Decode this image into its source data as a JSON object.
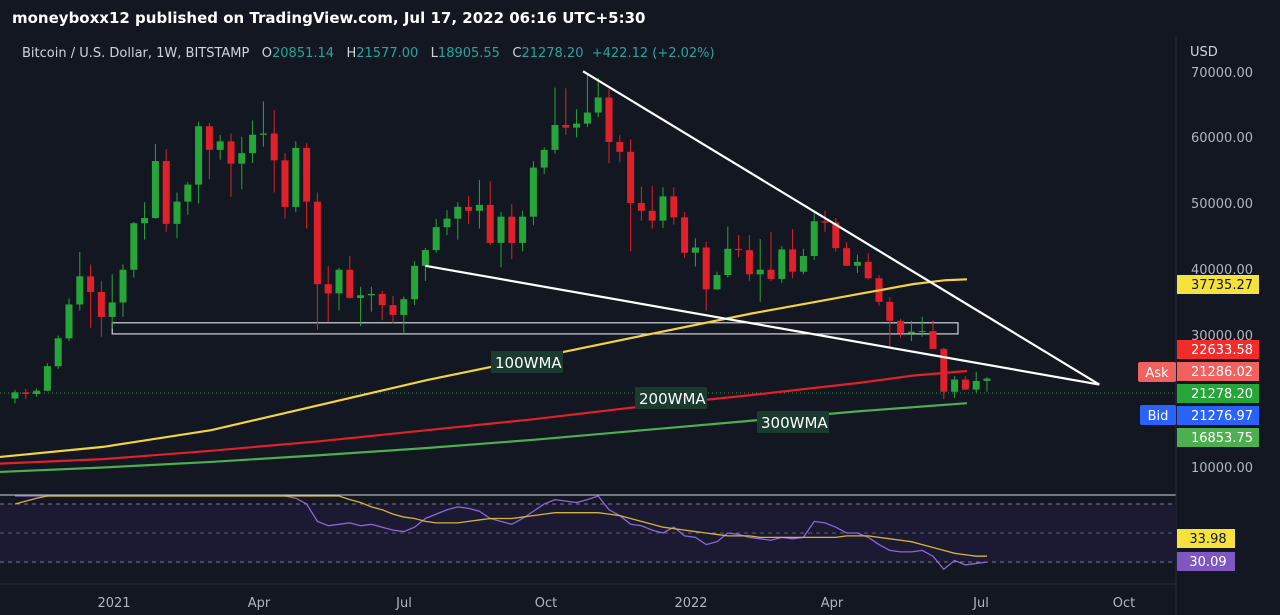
{
  "header": {
    "publisher": "moneyboxx12 published on TradingView.com, Jul 17, 2022 06:16 UTC+5:30"
  },
  "legend": {
    "symbol": "Bitcoin / U.S. Dollar, 1W, BITSTAMP",
    "o_label": "O",
    "o_value": "20851.14",
    "h_label": "H",
    "h_value": "21577.00",
    "l_label": "L",
    "l_value": "18905.55",
    "c_label": "C",
    "c_value": "21278.20",
    "change": "+422.12 (+2.02%)"
  },
  "colors": {
    "background": "#131722",
    "up": "#26a63a",
    "down": "#e0202a",
    "wma100": "#f2d43d",
    "wma200": "#e0202a",
    "wma300": "#4caf50",
    "rsi": "#8c67d6",
    "rsi_ma": "#d4b33a",
    "trendline": "#ffffff"
  },
  "annotations": {
    "wma100": "100WMA",
    "wma200": "200WMA",
    "wma300": "300WMA"
  },
  "price_axis": {
    "currency": "USD",
    "ticks": [
      "70000.00",
      "60000.00",
      "50000.00",
      "40000.00",
      "30000.00",
      "10000.00"
    ],
    "labels": {
      "wma100": "37735.27",
      "wma200": "22633.58",
      "ask_label": "Ask",
      "ask": "21286.02",
      "last": "21278.20",
      "bid_label": "Bid",
      "bid": "21276.97",
      "wma300": "16853.75"
    }
  },
  "rsi_axis": {
    "ma": "33.98",
    "rsi": "30.09"
  },
  "time_axis": {
    "ticks": [
      "2021",
      "Apr",
      "Jul",
      "Oct",
      "2022",
      "Apr",
      "Jul",
      "Oct"
    ]
  },
  "chart_data": {
    "type": "candlestick",
    "title": "Bitcoin / U.S. Dollar, 1W, BITSTAMP",
    "ylabel": "USD",
    "x_domain": [
      "2020-11-30",
      "2022-10-31"
    ],
    "y_ticks": [
      10000,
      30000,
      40000,
      50000,
      60000,
      70000
    ],
    "candles": [
      [
        17700,
        19200,
        16800,
        18800
      ],
      [
        18800,
        19400,
        17600,
        18500
      ],
      [
        18500,
        19500,
        18000,
        19100
      ],
      [
        19100,
        24000,
        19000,
        23500
      ],
      [
        23500,
        29000,
        23000,
        28500
      ],
      [
        28500,
        34800,
        28000,
        33900
      ],
      [
        33900,
        41900,
        33000,
        38200
      ],
      [
        38200,
        40000,
        30300,
        35800
      ],
      [
        35800,
        37500,
        28800,
        32000
      ],
      [
        32000,
        38500,
        30200,
        34200
      ],
      [
        34200,
        40000,
        32000,
        39200
      ],
      [
        39200,
        46500,
        38000,
        46300
      ],
      [
        46300,
        49500,
        43800,
        47100
      ],
      [
        47100,
        58400,
        47000,
        55800
      ],
      [
        55800,
        57600,
        45000,
        46200
      ],
      [
        46200,
        51000,
        44000,
        49600
      ],
      [
        49600,
        52600,
        47600,
        52200
      ],
      [
        52200,
        61800,
        49300,
        61100
      ],
      [
        61100,
        61600,
        53000,
        57500
      ],
      [
        57500,
        59800,
        56000,
        58800
      ],
      [
        58800,
        60000,
        50300,
        55400
      ],
      [
        55400,
        59500,
        51500,
        57000
      ],
      [
        57000,
        62000,
        55500,
        59800
      ],
      [
        59800,
        64900,
        58000,
        60000
      ],
      [
        60000,
        63600,
        51000,
        55900
      ],
      [
        55900,
        57000,
        47000,
        48800
      ],
      [
        48800,
        58800,
        48000,
        57800
      ],
      [
        57800,
        58500,
        45500,
        49600
      ],
      [
        49600,
        51000,
        30000,
        37000
      ],
      [
        37000,
        39800,
        31200,
        35600
      ],
      [
        35600,
        39500,
        33000,
        39200
      ],
      [
        39200,
        41300,
        34800,
        34900
      ],
      [
        34900,
        36600,
        30600,
        35300
      ],
      [
        35300,
        36600,
        32800,
        35500
      ],
      [
        35500,
        36000,
        31500,
        33800
      ],
      [
        33800,
        35200,
        31000,
        32300
      ],
      [
        32300,
        35100,
        29300,
        34700
      ],
      [
        34700,
        40500,
        33800,
        39800
      ],
      [
        39800,
        42500,
        37500,
        42200
      ],
      [
        42200,
        47000,
        41800,
        45700
      ],
      [
        45700,
        48300,
        44500,
        47000
      ],
      [
        47000,
        49500,
        43800,
        48800
      ],
      [
        48800,
        50500,
        46200,
        48200
      ],
      [
        48200,
        52900,
        45500,
        49100
      ],
      [
        49100,
        52700,
        43000,
        43300
      ],
      [
        43300,
        48000,
        39600,
        47300
      ],
      [
        47300,
        49200,
        40800,
        43300
      ],
      [
        43300,
        48200,
        42000,
        47300
      ],
      [
        47300,
        55800,
        46000,
        54800
      ],
      [
        54800,
        57900,
        53800,
        57500
      ],
      [
        57500,
        67000,
        56900,
        61300
      ],
      [
        61300,
        66900,
        59800,
        60900
      ],
      [
        60900,
        63700,
        59400,
        61500
      ],
      [
        61500,
        69000,
        61000,
        63200
      ],
      [
        63200,
        68500,
        62500,
        65500
      ],
      [
        65500,
        66800,
        55500,
        58700
      ],
      [
        58700,
        59800,
        55600,
        57200
      ],
      [
        57200,
        59100,
        42000,
        49400
      ],
      [
        49400,
        51900,
        46700,
        48200
      ],
      [
        48200,
        52000,
        45500,
        46700
      ],
      [
        46700,
        51800,
        45600,
        50400
      ],
      [
        50400,
        51800,
        46100,
        47200
      ],
      [
        47200,
        48000,
        41000,
        41800
      ],
      [
        41800,
        44000,
        39700,
        42600
      ],
      [
        42600,
        43500,
        33000,
        36200
      ],
      [
        36200,
        38900,
        36100,
        38400
      ],
      [
        38400,
        45800,
        38000,
        42400
      ],
      [
        42400,
        44500,
        41100,
        42200
      ],
      [
        42200,
        44500,
        37500,
        38500
      ],
      [
        38500,
        43900,
        34300,
        39200
      ],
      [
        39200,
        45000,
        37500,
        37800
      ],
      [
        37800,
        42800,
        37200,
        42300
      ],
      [
        42300,
        45400,
        37900,
        38900
      ],
      [
        38900,
        42400,
        38500,
        41300
      ],
      [
        41300,
        48200,
        40700,
        46600
      ],
      [
        46600,
        48200,
        45000,
        46400
      ],
      [
        46400,
        47100,
        42000,
        42500
      ],
      [
        42500,
        43400,
        39800,
        39800
      ],
      [
        39800,
        41500,
        38700,
        40400
      ],
      [
        40400,
        41700,
        37700,
        37900
      ],
      [
        37900,
        38400,
        33700,
        34300
      ],
      [
        34300,
        35000,
        26700,
        31400
      ],
      [
        31400,
        31700,
        28600,
        29400
      ],
      [
        29400,
        31400,
        28000,
        29700
      ],
      [
        29700,
        32000,
        28800,
        29800
      ],
      [
        29800,
        31500,
        26600,
        26600
      ],
      [
        26600,
        26800,
        17600,
        18900
      ],
      [
        18900,
        21700,
        17800,
        21100
      ],
      [
        21100,
        21700,
        19200,
        19300
      ],
      [
        19300,
        22500,
        18800,
        20850
      ],
      [
        20850,
        21577,
        18905,
        21278
      ]
    ],
    "wma100": [
      [
        0,
        7200
      ],
      [
        10,
        9000
      ],
      [
        20,
        12000
      ],
      [
        30,
        16500
      ],
      [
        40,
        21000
      ],
      [
        50,
        25000
      ],
      [
        60,
        29000
      ],
      [
        70,
        32500
      ],
      [
        75,
        34000
      ],
      [
        80,
        35500
      ],
      [
        85,
        37000
      ],
      [
        88,
        37600
      ],
      [
        90,
        37735
      ]
    ],
    "wma200": [
      [
        0,
        6000
      ],
      [
        10,
        6800
      ],
      [
        20,
        8300
      ],
      [
        30,
        10000
      ],
      [
        40,
        12000
      ],
      [
        50,
        14000
      ],
      [
        60,
        16300
      ],
      [
        70,
        18300
      ],
      [
        80,
        20500
      ],
      [
        85,
        21800
      ],
      [
        90,
        22634
      ]
    ],
    "wma300": [
      [
        0,
        4500
      ],
      [
        10,
        5300
      ],
      [
        20,
        6300
      ],
      [
        30,
        7500
      ],
      [
        40,
        8800
      ],
      [
        50,
        10300
      ],
      [
        60,
        12000
      ],
      [
        70,
        13700
      ],
      [
        80,
        15400
      ],
      [
        90,
        16854
      ]
    ],
    "trendlines": [
      {
        "x1": 52.6,
        "y1": 69500,
        "x2": 100.4,
        "y2": 20200
      },
      {
        "x1": 38,
        "y1": 39800,
        "x2": 100.4,
        "y2": 20200
      }
    ],
    "support_zone": [
      29300,
      31100
    ],
    "rsi": [
      80,
      83,
      86,
      88,
      91,
      94,
      96,
      93,
      90,
      88,
      86,
      88,
      91,
      94,
      92,
      90,
      88,
      90,
      92,
      87,
      85,
      87,
      88,
      85,
      82,
      78,
      74,
      70,
      58,
      55,
      56,
      57,
      55,
      56,
      54,
      52,
      51,
      54,
      60,
      63,
      66,
      68,
      67,
      65,
      60,
      58,
      56,
      60,
      65,
      70,
      73,
      72,
      71,
      73,
      76,
      66,
      62,
      56,
      55,
      52,
      50,
      54,
      48,
      47,
      42,
      44,
      50,
      49,
      47,
      46,
      45,
      47,
      46,
      47,
      58,
      57,
      54,
      50,
      50,
      47,
      42,
      38,
      37,
      37,
      38,
      34,
      25,
      31,
      28,
      29,
      30
    ],
    "rsi_ma": [
      70,
      72,
      74,
      76,
      78,
      80,
      82,
      84,
      86,
      88,
      89,
      89,
      89,
      89,
      89,
      89,
      88,
      88,
      88,
      88,
      88,
      88,
      88,
      87,
      86,
      85,
      84,
      82,
      80,
      78,
      76,
      73,
      71,
      68,
      66,
      63,
      61,
      60,
      58,
      57,
      57,
      57,
      58,
      59,
      60,
      60,
      60,
      61,
      62,
      63,
      64,
      64,
      64,
      64,
      64,
      63,
      62,
      60,
      58,
      56,
      54,
      53,
      52,
      51,
      50,
      49,
      48,
      48,
      48,
      47,
      47,
      47,
      47,
      47,
      47,
      47,
      47,
      48,
      48,
      48,
      47,
      46,
      45,
      44,
      42,
      40,
      38,
      36,
      35,
      34,
      34
    ]
  }
}
